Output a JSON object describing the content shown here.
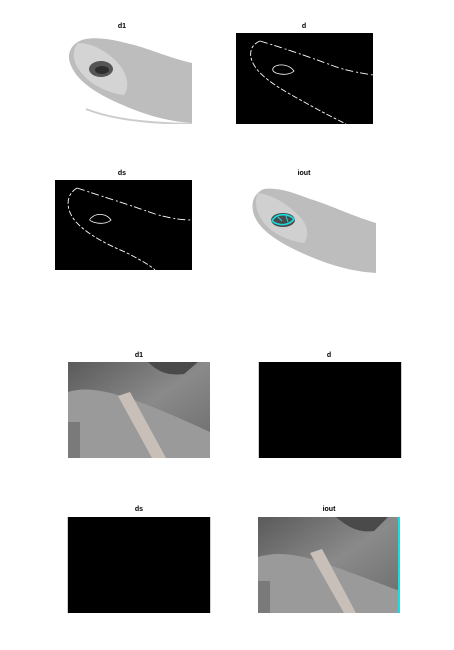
{
  "figure_1": {
    "panels": [
      {
        "title": "d1"
      },
      {
        "title": "d"
      },
      {
        "title": "ds"
      },
      {
        "title": "iout"
      }
    ]
  },
  "figure_2": {
    "panels": [
      {
        "title": "d1"
      },
      {
        "title": "d"
      },
      {
        "title": "ds"
      },
      {
        "title": "iout"
      }
    ]
  },
  "colors": {
    "background": "#000000",
    "edge": "#ffffff",
    "overlay": "#19e0e0"
  }
}
